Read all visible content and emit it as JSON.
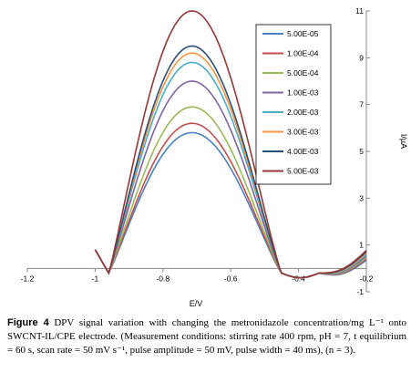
{
  "chart_data": {
    "type": "line",
    "xlabel": "E/V",
    "ylabel": "I/µA",
    "xlim": [
      -1.2,
      -0.2
    ],
    "ylim": [
      -1,
      11
    ],
    "x_ticks": [
      "-1.2",
      "-1",
      "-0.8",
      "-0.6",
      "-0.4",
      "-0.2"
    ],
    "y_ticks": [
      "11",
      "9",
      "7",
      "5",
      "3",
      "1",
      "-1"
    ],
    "grid": false,
    "legend_position": "right",
    "series": [
      {
        "name": "5.00E-05",
        "color": "#4a7fc1",
        "peak": 5.8
      },
      {
        "name": "1.00E-04",
        "color": "#c0504d",
        "peak": 6.2
      },
      {
        "name": "5.00E-04",
        "color": "#9bbb59",
        "peak": 6.9
      },
      {
        "name": "1.00E-03",
        "color": "#8064a2",
        "peak": 8.0
      },
      {
        "name": "2.00E-03",
        "color": "#4bacc6",
        "peak": 8.8
      },
      {
        "name": "3.00E-03",
        "color": "#f79646",
        "peak": 9.2
      },
      {
        "name": "4.00E-03",
        "color": "#2c4d75",
        "peak": 9.5
      },
      {
        "name": "5.00E-03",
        "color": "#953735",
        "peak": 11.0
      }
    ],
    "peak_potential": -0.7
  },
  "caption": {
    "label": "Figure 4",
    "text": "DPV signal variation with changing the metronidazole concentration/mg L⁻¹ onto SWCNT-IL/CPE electrode. (Measurement conditions: stirring rate 400 rpm, pH = 7, t equilibrium = 60 s, scan rate = 50 mV s⁻¹, pulse amplitude = 50 mV, pulse width = 40 ms), (n = 3)."
  }
}
